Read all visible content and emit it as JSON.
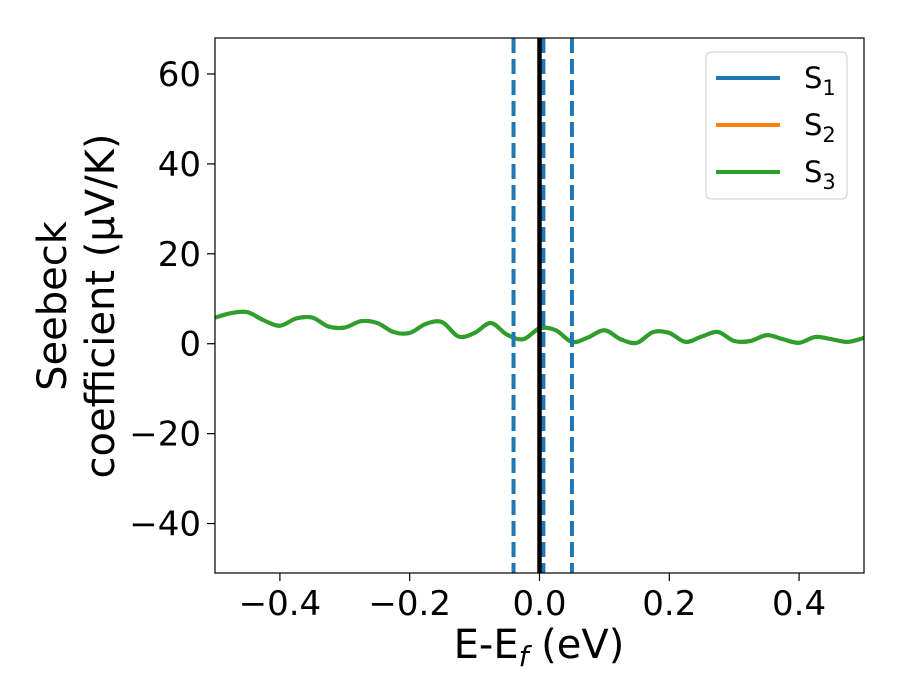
{
  "chart_data": {
    "type": "line",
    "xlabel": "E-E_f (eV)",
    "xlabel_main": "E-E",
    "xlabel_sub": "f",
    "xlabel_unit": " (eV)",
    "ylabel_line1": "Seebeck",
    "ylabel_line2": "coefficient  (μV/K)",
    "xlim": [
      -0.5,
      0.5
    ],
    "ylim": [
      -51,
      68
    ],
    "xticks": [
      -0.4,
      -0.2,
      0.0,
      0.2,
      0.4
    ],
    "xtick_labels": [
      "−0.4",
      "−0.2",
      "0.0",
      "0.2",
      "0.4"
    ],
    "yticks": [
      -40,
      -20,
      0,
      20,
      40,
      60
    ],
    "ytick_labels": [
      "−40",
      "−20",
      "0",
      "20",
      "40",
      "60"
    ],
    "legend_position": "upper-right",
    "grid": false,
    "vertical_lines": [
      {
        "x": -0.04,
        "style": "dashed",
        "color": "#1f77b4"
      },
      {
        "x": 0.05,
        "style": "dashed",
        "color": "#1f77b4"
      },
      {
        "x": 0.006,
        "style": "dashed",
        "color": "#1f77b4"
      },
      {
        "x": 0.0,
        "style": "solid",
        "color": "#000000"
      }
    ],
    "series": [
      {
        "name": "S",
        "sub": "1",
        "color": "#1f77b4",
        "x": [
          -0.5,
          -0.475,
          -0.45,
          -0.425,
          -0.4,
          -0.375,
          -0.35,
          -0.325,
          -0.3,
          -0.275,
          -0.25,
          -0.225,
          -0.2,
          -0.175,
          -0.15,
          -0.125,
          -0.1,
          -0.075,
          -0.05,
          -0.025,
          0.0,
          0.025,
          0.05,
          0.075,
          0.1,
          0.125,
          0.15,
          0.175,
          0.2,
          0.225,
          0.25,
          0.275,
          0.3,
          0.325,
          0.35,
          0.375,
          0.4,
          0.425,
          0.45,
          0.475,
          0.5
        ],
        "y": [
          5.8,
          6.8,
          7.0,
          5.2,
          4.0,
          5.6,
          5.8,
          3.8,
          3.6,
          5.0,
          4.6,
          2.6,
          2.4,
          4.4,
          4.8,
          1.6,
          2.4,
          4.6,
          2.0,
          1.0,
          3.4,
          3.0,
          0.4,
          1.4,
          3.0,
          1.0,
          0.2,
          2.6,
          2.4,
          0.4,
          1.6,
          2.6,
          0.6,
          0.6,
          1.9,
          1.0,
          0.2,
          1.5,
          1.0,
          0.4,
          1.3
        ]
      },
      {
        "name": "S",
        "sub": "2",
        "color": "#ff7f0e",
        "x": [
          -0.5,
          -0.475,
          -0.45,
          -0.425,
          -0.4,
          -0.375,
          -0.35,
          -0.325,
          -0.3,
          -0.275,
          -0.25,
          -0.225,
          -0.2,
          -0.175,
          -0.15,
          -0.125,
          -0.1,
          -0.075,
          -0.05,
          -0.025,
          0.0,
          0.025,
          0.05,
          0.075,
          0.1,
          0.125,
          0.15,
          0.175,
          0.2,
          0.225,
          0.25,
          0.275,
          0.3,
          0.325,
          0.35,
          0.375,
          0.4,
          0.425,
          0.45,
          0.475,
          0.5
        ],
        "y": [
          5.8,
          6.8,
          7.0,
          5.2,
          4.0,
          5.6,
          5.8,
          3.8,
          3.6,
          5.0,
          4.6,
          2.6,
          2.4,
          4.4,
          4.8,
          1.6,
          2.4,
          4.6,
          2.0,
          1.0,
          3.4,
          3.0,
          0.4,
          1.4,
          3.0,
          1.0,
          0.2,
          2.6,
          2.4,
          0.4,
          1.6,
          2.6,
          0.6,
          0.6,
          1.9,
          1.0,
          0.2,
          1.5,
          1.0,
          0.4,
          1.3
        ]
      },
      {
        "name": "S",
        "sub": "3",
        "color": "#2ca02c",
        "x": [
          -0.5,
          -0.475,
          -0.45,
          -0.425,
          -0.4,
          -0.375,
          -0.35,
          -0.325,
          -0.3,
          -0.275,
          -0.25,
          -0.225,
          -0.2,
          -0.175,
          -0.15,
          -0.125,
          -0.1,
          -0.075,
          -0.05,
          -0.025,
          0.0,
          0.025,
          0.05,
          0.075,
          0.1,
          0.125,
          0.15,
          0.175,
          0.2,
          0.225,
          0.25,
          0.275,
          0.3,
          0.325,
          0.35,
          0.375,
          0.4,
          0.425,
          0.45,
          0.475,
          0.5
        ],
        "y": [
          5.8,
          6.8,
          7.0,
          5.2,
          4.0,
          5.6,
          5.8,
          3.8,
          3.6,
          5.0,
          4.6,
          2.6,
          2.4,
          4.4,
          4.8,
          1.6,
          2.4,
          4.6,
          2.0,
          1.0,
          3.4,
          3.0,
          0.4,
          1.4,
          3.0,
          1.0,
          0.2,
          2.6,
          2.4,
          0.4,
          1.6,
          2.6,
          0.6,
          0.6,
          1.9,
          1.0,
          0.2,
          1.5,
          1.0,
          0.4,
          1.3
        ]
      }
    ]
  }
}
